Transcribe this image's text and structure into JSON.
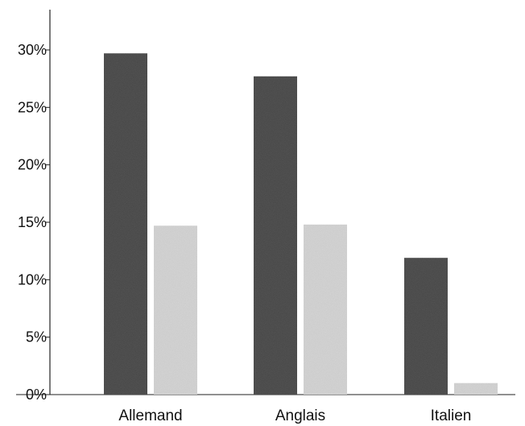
{
  "chart_data": {
    "type": "bar",
    "title": "",
    "xlabel": "",
    "ylabel": "",
    "categories": [
      "Allemand",
      "Anglais",
      "Italien"
    ],
    "series": [
      {
        "values": [
          29.7,
          27.7,
          11.9
        ]
      },
      {
        "values": [
          14.7,
          14.8,
          1.0
        ]
      }
    ],
    "ylim": [
      0,
      30
    ],
    "yticks": [
      "0%",
      "5%",
      "10%",
      "15%",
      "20%",
      "25%",
      "30%"
    ],
    "grid": false,
    "legend": "none"
  },
  "colors": {
    "series_0": "#5c5c5c",
    "series_1": "#d9d9d9",
    "axis": "#222222"
  }
}
